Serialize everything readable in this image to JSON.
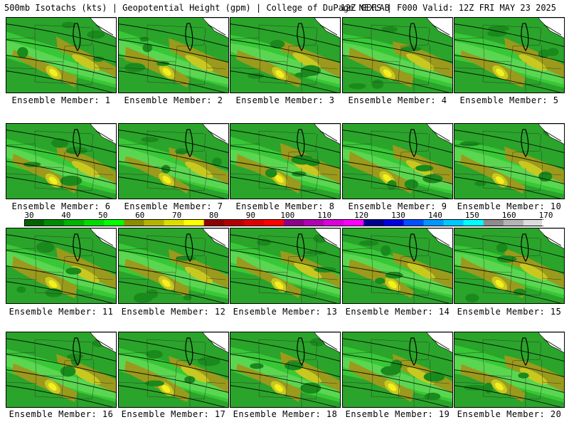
{
  "header": {
    "left_title": "500mb Isotachs (kts) | Geopotential Height (gpm) | College of DuPage NEXLAB",
    "right_title": "12Z GEFS | F000 Valid: 12Z FRI MAY 23 2025"
  },
  "colorbar": {
    "labels": [
      "30",
      "40",
      "50",
      "60",
      "70",
      "80",
      "90",
      "100",
      "110",
      "120",
      "130",
      "140",
      "150",
      "160",
      "170"
    ],
    "colors": [
      "#006400",
      "#008c00",
      "#00b400",
      "#00dc00",
      "#00ff00",
      "#8c8c00",
      "#b4b400",
      "#dcdc00",
      "#ffff00",
      "#8c0000",
      "#b40000",
      "#dc0000",
      "#ff0000",
      "#8c008c",
      "#b400b4",
      "#dc00dc",
      "#ff00ff",
      "#00008c",
      "#0000dc",
      "#0050ff",
      "#0096ff",
      "#00c8ff",
      "#00ffff",
      "#8c8c8c",
      "#b4b4b4",
      "#dcdcdc"
    ]
  },
  "panels": [
    {
      "label": "Ensemble Member: 1"
    },
    {
      "label": "Ensemble Member: 2"
    },
    {
      "label": "Ensemble Member: 3"
    },
    {
      "label": "Ensemble Member: 4"
    },
    {
      "label": "Ensemble Member: 5"
    },
    {
      "label": "Ensemble Member: 6"
    },
    {
      "label": "Ensemble Member: 7"
    },
    {
      "label": "Ensemble Member: 8"
    },
    {
      "label": "Ensemble Member: 9"
    },
    {
      "label": "Ensemble Member: 10"
    },
    {
      "label": "Ensemble Member: 11"
    },
    {
      "label": "Ensemble Member: 12"
    },
    {
      "label": "Ensemble Member: 13"
    },
    {
      "label": "Ensemble Member: 14"
    },
    {
      "label": "Ensemble Member: 15"
    },
    {
      "label": "Ensemble Member: 16"
    },
    {
      "label": "Ensemble Member: 17"
    },
    {
      "label": "Ensemble Member: 18"
    },
    {
      "label": "Ensemble Member: 19"
    },
    {
      "label": "Ensemble Member: 20"
    }
  ]
}
